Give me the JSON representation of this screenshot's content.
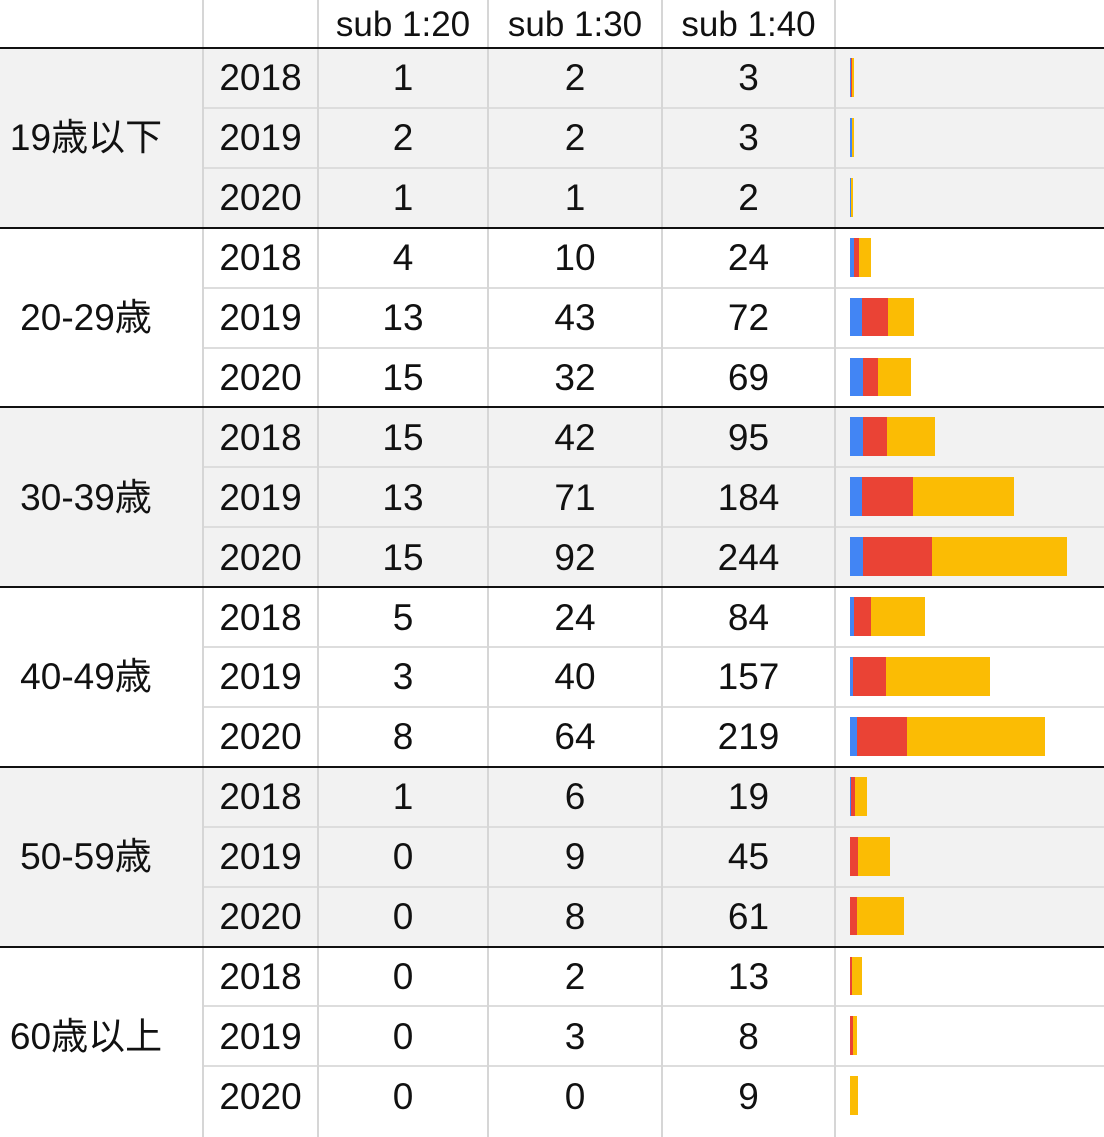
{
  "header": {
    "col_age": "",
    "col_year": "",
    "series_labels": [
      "sub 1:20",
      "sub 1:30",
      "sub 1:40"
    ]
  },
  "colors": {
    "sub_1_20": "#4285f4",
    "sub_1_30": "#ea4335",
    "sub_1_40": "#fbbc04"
  },
  "chart_data": {
    "type": "table",
    "columns": [
      "sub 1:20",
      "sub 1:30",
      "sub 1:40"
    ],
    "groups": [
      {
        "label": "19歳以下",
        "rows": [
          {
            "year": "2018",
            "values": [
              1,
              2,
              3
            ]
          },
          {
            "year": "2019",
            "values": [
              2,
              2,
              3
            ]
          },
          {
            "year": "2020",
            "values": [
              1,
              1,
              2
            ]
          }
        ]
      },
      {
        "label": "20-29歳",
        "rows": [
          {
            "year": "2018",
            "values": [
              4,
              10,
              24
            ]
          },
          {
            "year": "2019",
            "values": [
              13,
              43,
              72
            ]
          },
          {
            "year": "2020",
            "values": [
              15,
              32,
              69
            ]
          }
        ]
      },
      {
        "label": "30-39歳",
        "rows": [
          {
            "year": "2018",
            "values": [
              15,
              42,
              95
            ]
          },
          {
            "year": "2019",
            "values": [
              13,
              71,
              184
            ]
          },
          {
            "year": "2020",
            "values": [
              15,
              92,
              244
            ]
          }
        ]
      },
      {
        "label": "40-49歳",
        "rows": [
          {
            "year": "2018",
            "values": [
              5,
              24,
              84
            ]
          },
          {
            "year": "2019",
            "values": [
              3,
              40,
              157
            ]
          },
          {
            "year": "2020",
            "values": [
              8,
              64,
              219
            ]
          }
        ]
      },
      {
        "label": "50-59歳",
        "rows": [
          {
            "year": "2018",
            "values": [
              1,
              6,
              19
            ]
          },
          {
            "year": "2019",
            "values": [
              0,
              9,
              45
            ]
          },
          {
            "year": "2020",
            "values": [
              0,
              8,
              61
            ]
          }
        ]
      },
      {
        "label": "60歳以上",
        "rows": [
          {
            "year": "2018",
            "values": [
              0,
              2,
              13
            ]
          },
          {
            "year": "2019",
            "values": [
              0,
              3,
              8
            ]
          },
          {
            "year": "2020",
            "values": [
              0,
              0,
              9
            ]
          }
        ]
      }
    ],
    "sparkline": {
      "type": "bar",
      "stacked": true,
      "note": "Each row has an in-cell stacked bar made of its three values (sub 1:20, sub 1:30 − sub 1:20, sub 1:40 − sub 1:30)."
    }
  }
}
